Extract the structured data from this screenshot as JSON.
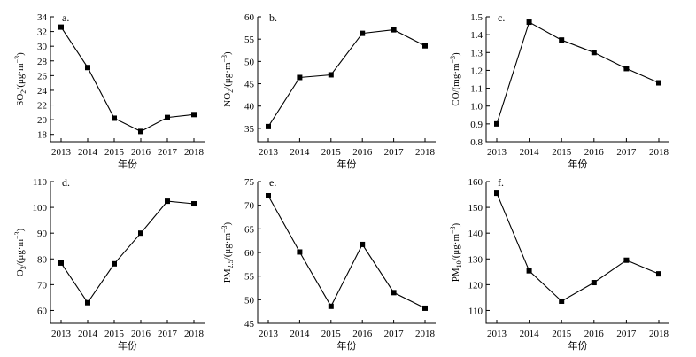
{
  "chart_data": [
    {
      "id": "so2",
      "type": "line",
      "panel_label": "a.",
      "ylabel_main": "SO",
      "ylabel_sub": "2",
      "ylabel_unit_pre": "/(μg·m",
      "ylabel_unit_sup": "−3",
      "ylabel_unit_post": ")",
      "xlabel": "年份",
      "x": [
        "2013",
        "2014",
        "2015",
        "2016",
        "2017",
        "2018"
      ],
      "values": [
        32.6,
        27.1,
        20.2,
        18.4,
        20.3,
        20.7
      ],
      "ylim": [
        17,
        34
      ],
      "yticks": [
        18,
        20,
        22,
        24,
        26,
        28,
        30,
        32,
        34
      ]
    },
    {
      "id": "no2",
      "type": "line",
      "panel_label": "b.",
      "ylabel_main": "NO",
      "ylabel_sub": "2",
      "ylabel_unit_pre": "/(μg·m",
      "ylabel_unit_sup": "−3",
      "ylabel_unit_post": ")",
      "xlabel": "年份",
      "x": [
        "2013",
        "2014",
        "2015",
        "2016",
        "2017",
        "2018"
      ],
      "values": [
        35.4,
        46.4,
        47.0,
        56.3,
        57.1,
        53.5
      ],
      "ylim": [
        32,
        60
      ],
      "yticks": [
        35,
        40,
        45,
        50,
        55,
        60
      ]
    },
    {
      "id": "co",
      "type": "line",
      "panel_label": "c.",
      "ylabel_main": "CO",
      "ylabel_sub": "",
      "ylabel_unit_pre": "/(mg·m",
      "ylabel_unit_sup": "−3",
      "ylabel_unit_post": ")",
      "xlabel": "年份",
      "x": [
        "2013",
        "2014",
        "2015",
        "2016",
        "2017",
        "2018"
      ],
      "values": [
        0.9,
        1.47,
        1.37,
        1.3,
        1.21,
        1.13
      ],
      "ylim": [
        0.8,
        1.5
      ],
      "yticks": [
        0.8,
        0.9,
        1.0,
        1.1,
        1.2,
        1.3,
        1.4,
        1.5
      ]
    },
    {
      "id": "o3",
      "type": "line",
      "panel_label": "d.",
      "ylabel_main": "O",
      "ylabel_sub": "3",
      "ylabel_unit_pre": "/(μg·m",
      "ylabel_unit_sup": "−3",
      "ylabel_unit_post": ")",
      "xlabel": "年份",
      "x": [
        "2013",
        "2014",
        "2015",
        "2016",
        "2017",
        "2018"
      ],
      "values": [
        78.4,
        63.0,
        78.1,
        90.0,
        102.4,
        101.4
      ],
      "ylim": [
        55,
        110
      ],
      "yticks": [
        60,
        70,
        80,
        90,
        100,
        110
      ]
    },
    {
      "id": "pm25",
      "type": "line",
      "panel_label": "e.",
      "ylabel_main": "PM",
      "ylabel_sub": "2.5",
      "ylabel_unit_pre": "/(μg·m",
      "ylabel_unit_sup": "−3",
      "ylabel_unit_post": ")",
      "xlabel": "年份",
      "x": [
        "2013",
        "2014",
        "2015",
        "2016",
        "2017",
        "2018"
      ],
      "values": [
        72.0,
        60.1,
        48.6,
        61.7,
        51.5,
        48.2
      ],
      "ylim": [
        45,
        75
      ],
      "yticks": [
        45,
        50,
        55,
        60,
        65,
        70,
        75
      ]
    },
    {
      "id": "pm10",
      "type": "line",
      "panel_label": "f.",
      "ylabel_main": "PM",
      "ylabel_sub": "10",
      "ylabel_unit_pre": "/(μg·m",
      "ylabel_unit_sup": "−3",
      "ylabel_unit_post": ")",
      "xlabel": "年份",
      "x": [
        "2013",
        "2014",
        "2015",
        "2016",
        "2017",
        "2018"
      ],
      "values": [
        155.5,
        125.4,
        113.6,
        120.8,
        129.5,
        124.2
      ],
      "ylim": [
        105,
        160
      ],
      "yticks": [
        110,
        120,
        130,
        140,
        150,
        160
      ]
    }
  ]
}
